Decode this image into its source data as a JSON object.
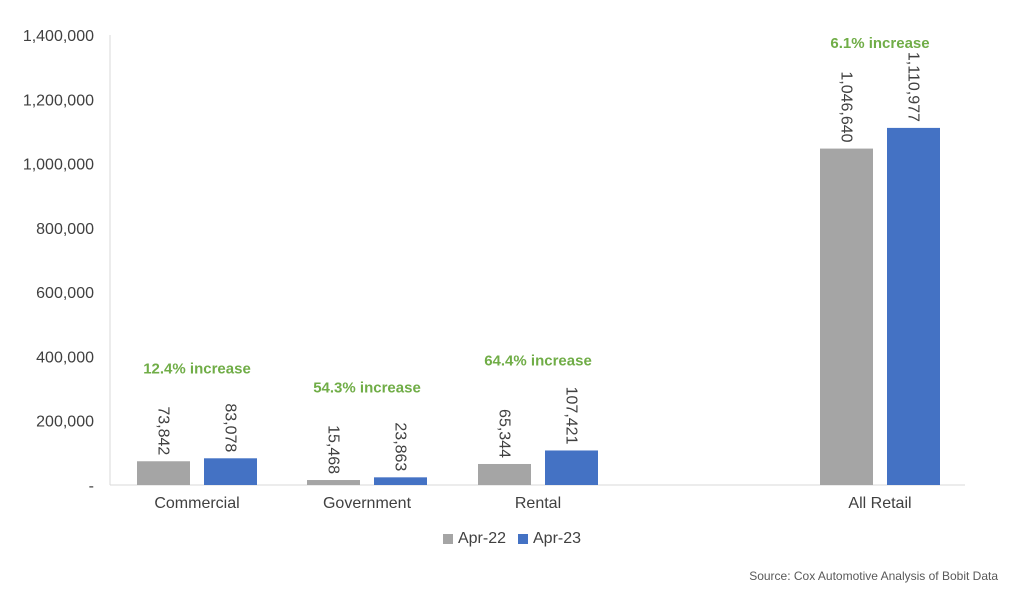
{
  "chart_data": {
    "type": "bar",
    "categories": [
      "Commercial",
      "Government",
      "Rental",
      "All Retail"
    ],
    "series": [
      {
        "name": "Apr-22",
        "color": "#a5a5a5",
        "values": [
          73842,
          15468,
          65344,
          1046640
        ],
        "labels": [
          "73,842",
          "15,468",
          "65,344",
          "1,046,640"
        ]
      },
      {
        "name": "Apr-23",
        "color": "#4472c4",
        "values": [
          83078,
          23863,
          107421,
          1110977
        ],
        "labels": [
          "83,078",
          "23,863",
          "107,421",
          "1,110,977"
        ]
      }
    ],
    "annotations": [
      "12.4% increase",
      "54.3% increase",
      "64.4% increase",
      "6.1% increase"
    ],
    "annotation_color": "#70ad47",
    "yticks": [
      0,
      200000,
      400000,
      600000,
      800000,
      1000000,
      1200000,
      1400000
    ],
    "ytick_labels": [
      "-",
      "200,000",
      "400,000",
      "600,000",
      "800,000",
      "1,000,000",
      "1,200,000",
      "1,400,000"
    ],
    "ylim": [
      0,
      1400000
    ],
    "grid": false,
    "legend_position": "bottom",
    "title": "",
    "xlabel": "",
    "ylabel": ""
  },
  "source_note": "Source: Cox Automotive Analysis of Bobit Data"
}
